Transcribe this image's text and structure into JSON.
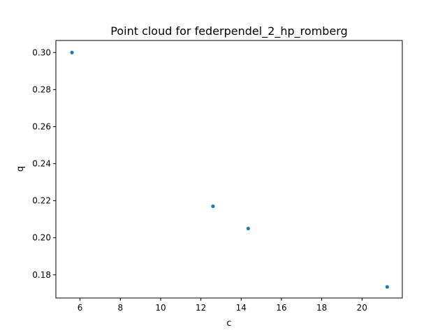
{
  "chart_data": {
    "type": "scatter",
    "title": "Point cloud for federpendel_2_hp_romberg",
    "xlabel": "c",
    "ylabel": "q",
    "xlim": [
      4.8,
      22.0
    ],
    "ylim": [
      0.1675,
      0.3065
    ],
    "x_ticks": [
      6,
      8,
      10,
      12,
      14,
      16,
      18,
      20
    ],
    "y_ticks": [
      0.18,
      0.2,
      0.22,
      0.24,
      0.26,
      0.28,
      0.3
    ],
    "y_tick_decimals": 2,
    "grid": false,
    "legend": "none",
    "marker_color": "#1f77b4",
    "points": [
      {
        "x": 5.6,
        "y": 0.3
      },
      {
        "x": 12.6,
        "y": 0.217
      },
      {
        "x": 14.35,
        "y": 0.205
      },
      {
        "x": 21.25,
        "y": 0.1735
      }
    ]
  }
}
